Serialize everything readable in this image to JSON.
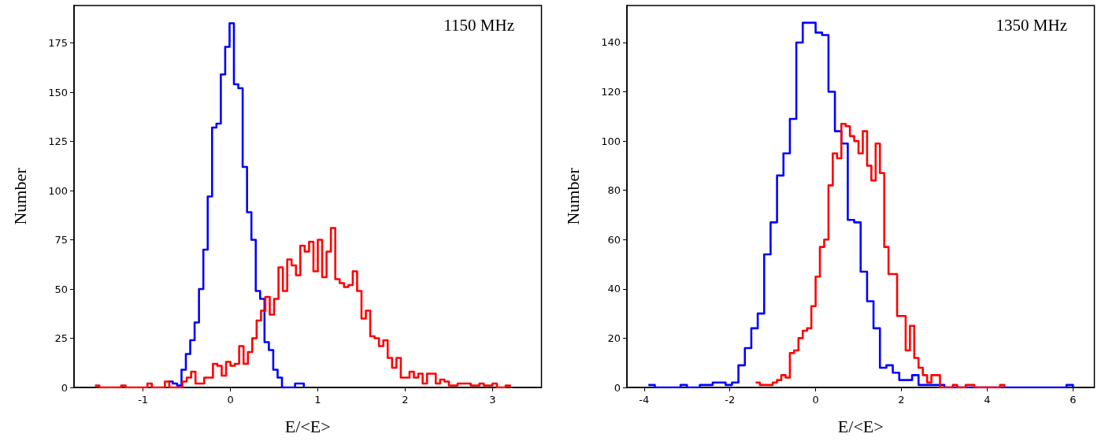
{
  "chart_data": [
    {
      "type": "step",
      "title": "1150 MHz",
      "xlabel": "E/<E>",
      "ylabel": "Number",
      "marker": "none",
      "xlim": [
        -1.79,
        3.56
      ],
      "xticks": [
        -1,
        0,
        1,
        2,
        3
      ],
      "ylim": [
        0,
        194
      ],
      "yticks": [
        0,
        25,
        50,
        75,
        100,
        125,
        150,
        175
      ],
      "series": [
        {
          "color": "#0000ff",
          "x": [
            -0.71,
            -0.66,
            -0.61,
            -0.56,
            -0.51,
            -0.46,
            -0.41,
            -0.36,
            -0.31,
            -0.26,
            -0.21,
            -0.16,
            -0.11,
            -0.06,
            -0.01,
            0.04,
            0.09,
            0.14,
            0.19,
            0.24,
            0.29,
            0.34,
            0.39,
            0.44,
            0.49,
            0.54,
            0.59,
            0.64,
            0.69,
            0.74,
            0.79,
            0.84
          ],
          "values": [
            3,
            2,
            1,
            9,
            17,
            24,
            33,
            50,
            70,
            97,
            132,
            134,
            159,
            173,
            185,
            154,
            152,
            112,
            89,
            75,
            49,
            45,
            23,
            19,
            9,
            5,
            0,
            0,
            0,
            2,
            2,
            0
          ]
        },
        {
          "color": "#ff0000",
          "x": [
            -1.55,
            -1.5,
            -1.45,
            -1.4,
            -1.35,
            -1.3,
            -1.25,
            -1.2,
            -1.15,
            -1.1,
            -1.05,
            -1.0,
            -0.95,
            -0.9,
            -0.85,
            -0.8,
            -0.75,
            -0.7,
            -0.65,
            -0.6,
            -0.55,
            -0.5,
            -0.45,
            -0.4,
            -0.35,
            -0.3,
            -0.25,
            -0.2,
            -0.15,
            -0.1,
            -0.05,
            0.0,
            0.05,
            0.1,
            0.15,
            0.2,
            0.25,
            0.3,
            0.35,
            0.4,
            0.45,
            0.5,
            0.55,
            0.6,
            0.65,
            0.7,
            0.75,
            0.8,
            0.85,
            0.9,
            0.95,
            1.0,
            1.05,
            1.1,
            1.15,
            1.2,
            1.25,
            1.3,
            1.35,
            1.4,
            1.45,
            1.5,
            1.55,
            1.6,
            1.65,
            1.7,
            1.75,
            1.8,
            1.85,
            1.9,
            1.95,
            2.0,
            2.05,
            2.1,
            2.15,
            2.2,
            2.25,
            2.3,
            2.35,
            2.4,
            2.45,
            2.5,
            2.55,
            2.6,
            2.65,
            2.7,
            2.75,
            2.8,
            2.85,
            2.9,
            2.95,
            3.0,
            3.05,
            3.1,
            3.15,
            3.2
          ],
          "values": [
            1,
            0,
            0,
            0,
            0,
            0,
            1,
            0,
            0,
            0,
            0,
            0,
            2,
            0,
            0,
            0,
            3,
            0,
            0,
            0,
            3,
            5,
            8,
            2,
            2,
            5,
            5,
            12,
            11,
            6,
            13,
            11,
            12,
            21,
            12,
            18,
            25,
            34,
            39,
            46,
            37,
            45,
            61,
            49,
            65,
            62,
            57,
            72,
            69,
            74,
            59,
            75,
            56,
            69,
            81,
            55,
            53,
            51,
            52,
            59,
            49,
            35,
            39,
            26,
            25,
            21,
            24,
            15,
            10,
            15,
            5,
            5,
            8,
            5,
            7,
            2,
            7,
            7,
            2,
            4,
            3,
            1,
            1,
            2,
            2,
            2,
            1,
            1,
            2,
            1,
            1,
            2,
            0,
            0,
            1,
            0
          ]
        }
      ]
    },
    {
      "type": "step",
      "title": "1350 MHz",
      "xlabel": "E/<E>",
      "ylabel": "Number",
      "marker": "none",
      "xlim": [
        -4.4,
        6.5
      ],
      "xticks": [
        -4,
        -2,
        0,
        2,
        4,
        6
      ],
      "ylim": [
        0,
        155
      ],
      "yticks": [
        0,
        20,
        40,
        60,
        80,
        100,
        120,
        140
      ],
      "series": [
        {
          "color": "#0000ff",
          "x": [
            -3.9,
            -3.75,
            -3.6,
            -3.45,
            -3.3,
            -3.15,
            -3.0,
            -2.85,
            -2.7,
            -2.55,
            -2.4,
            -2.25,
            -2.1,
            -1.95,
            -1.8,
            -1.65,
            -1.5,
            -1.35,
            -1.2,
            -1.05,
            -0.9,
            -0.75,
            -0.6,
            -0.45,
            -0.3,
            -0.15,
            0,
            0.15,
            0.3,
            0.45,
            0.6,
            0.75,
            0.9,
            1.05,
            1.2,
            1.35,
            1.5,
            1.65,
            1.8,
            1.95,
            2.1,
            2.25,
            2.4,
            2.55,
            2.7,
            2.85,
            3.0,
            3.15,
            3.3,
            3.45,
            3.6,
            3.75,
            3.9,
            4.05,
            4.2,
            4.35,
            4.5,
            4.65,
            4.8,
            4.95,
            5.1,
            5.25,
            5.4,
            5.55,
            5.7,
            5.85,
            6.0
          ],
          "values": [
            1,
            0,
            0,
            0,
            0,
            1,
            0,
            0,
            1,
            1,
            2,
            2,
            1,
            2,
            9,
            16,
            24,
            30,
            54,
            67,
            86,
            95,
            109,
            140,
            148,
            148,
            144,
            143,
            120,
            104,
            99,
            68,
            67,
            47,
            35,
            24,
            8,
            9,
            6,
            3,
            3,
            5,
            1,
            1,
            1,
            1,
            0,
            0,
            0,
            0,
            0,
            0,
            0,
            0,
            0,
            0,
            0,
            0,
            0,
            0,
            0,
            0,
            0,
            0,
            0,
            1,
            0
          ]
        },
        {
          "color": "#ff0000",
          "x": [
            -1.4,
            -1.3,
            -1.2,
            -1.1,
            -1.0,
            -0.9,
            -0.8,
            -0.7,
            -0.6,
            -0.5,
            -0.4,
            -0.3,
            -0.2,
            -0.1,
            0,
            0.1,
            0.2,
            0.3,
            0.4,
            0.5,
            0.6,
            0.7,
            0.8,
            0.9,
            1.0,
            1.1,
            1.2,
            1.3,
            1.4,
            1.5,
            1.6,
            1.7,
            1.8,
            1.9,
            2.0,
            2.1,
            2.2,
            2.3,
            2.4,
            2.5,
            2.6,
            2.7,
            2.8,
            2.9,
            3.0,
            3.1,
            3.2,
            3.3,
            3.4,
            3.5,
            3.6,
            3.7,
            3.8,
            3.9,
            4.0,
            4.1,
            4.2,
            4.3,
            4.4
          ],
          "values": [
            2,
            1,
            1,
            1,
            2,
            3,
            5,
            4,
            14,
            15,
            20,
            23,
            24,
            33,
            45,
            57,
            60,
            82,
            95,
            93,
            107,
            106,
            102,
            100,
            95,
            104,
            90,
            84,
            99,
            87,
            57,
            46,
            46,
            29,
            29,
            15,
            25,
            12,
            8,
            5,
            2,
            5,
            5,
            0,
            0,
            0,
            1,
            0,
            0,
            1,
            1,
            0,
            0,
            0,
            0,
            0,
            0,
            1,
            0
          ]
        }
      ]
    }
  ]
}
